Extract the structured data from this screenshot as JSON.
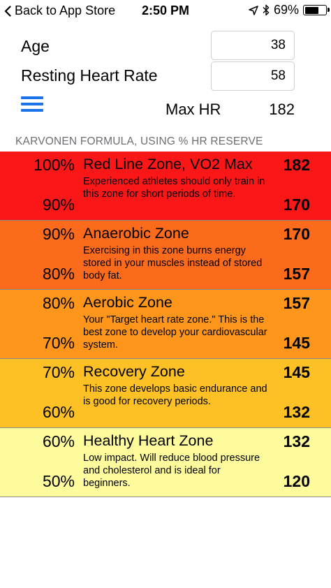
{
  "status_bar": {
    "back_label": "Back to App Store",
    "time": "2:50 PM",
    "battery_text": "69%",
    "battery_level": 0.69
  },
  "form": {
    "age_label": "Age",
    "age_value": "38",
    "resting_label": "Resting Heart Rate",
    "resting_value": "58"
  },
  "summary": {
    "max_hr_label": "Max HR",
    "max_hr_value": "182"
  },
  "section_header": "KARVONEN FORMULA, USING % HR RESERVE",
  "zones": [
    {
      "top_pct": "100%",
      "bottom_pct": "90%",
      "title": "Red Line Zone, VO2 Max",
      "description": "Experienced athletes should only train in this zone for short periods of time.",
      "top_hr": "182",
      "bottom_hr": "170",
      "color": "#fb1718"
    },
    {
      "top_pct": "90%",
      "bottom_pct": "80%",
      "title": "Anaerobic Zone",
      "description": "Exercising in this zone burns energy stored in your muscles instead of stored body fat.",
      "top_hr": "170",
      "bottom_hr": "157",
      "color": "#fc6a1b"
    },
    {
      "top_pct": "80%",
      "bottom_pct": "70%",
      "title": "Aerobic Zone",
      "description": "Your \"Target heart rate zone.\" This is the best zone to develop your cardiovascular system.",
      "top_hr": "157",
      "bottom_hr": "145",
      "color": "#fd961b"
    },
    {
      "top_pct": "70%",
      "bottom_pct": "60%",
      "title": "Recovery Zone",
      "description": "This zone develops basic endurance and is good for recovery periods.",
      "top_hr": "145",
      "bottom_hr": "132",
      "color": "#fdc126"
    },
    {
      "top_pct": "60%",
      "bottom_pct": "50%",
      "title": "Healthy Heart Zone",
      "description": "Low impact. Will reduce blood pressure and cholesterol and is ideal for beginners.",
      "top_hr": "132",
      "bottom_hr": "120",
      "color": "#fefb9d"
    }
  ],
  "icons": {
    "back": "chevron-left-icon",
    "location": "location-arrow-icon",
    "bluetooth": "bluetooth-icon",
    "battery": "battery-icon",
    "menu": "hamburger-menu-icon"
  }
}
